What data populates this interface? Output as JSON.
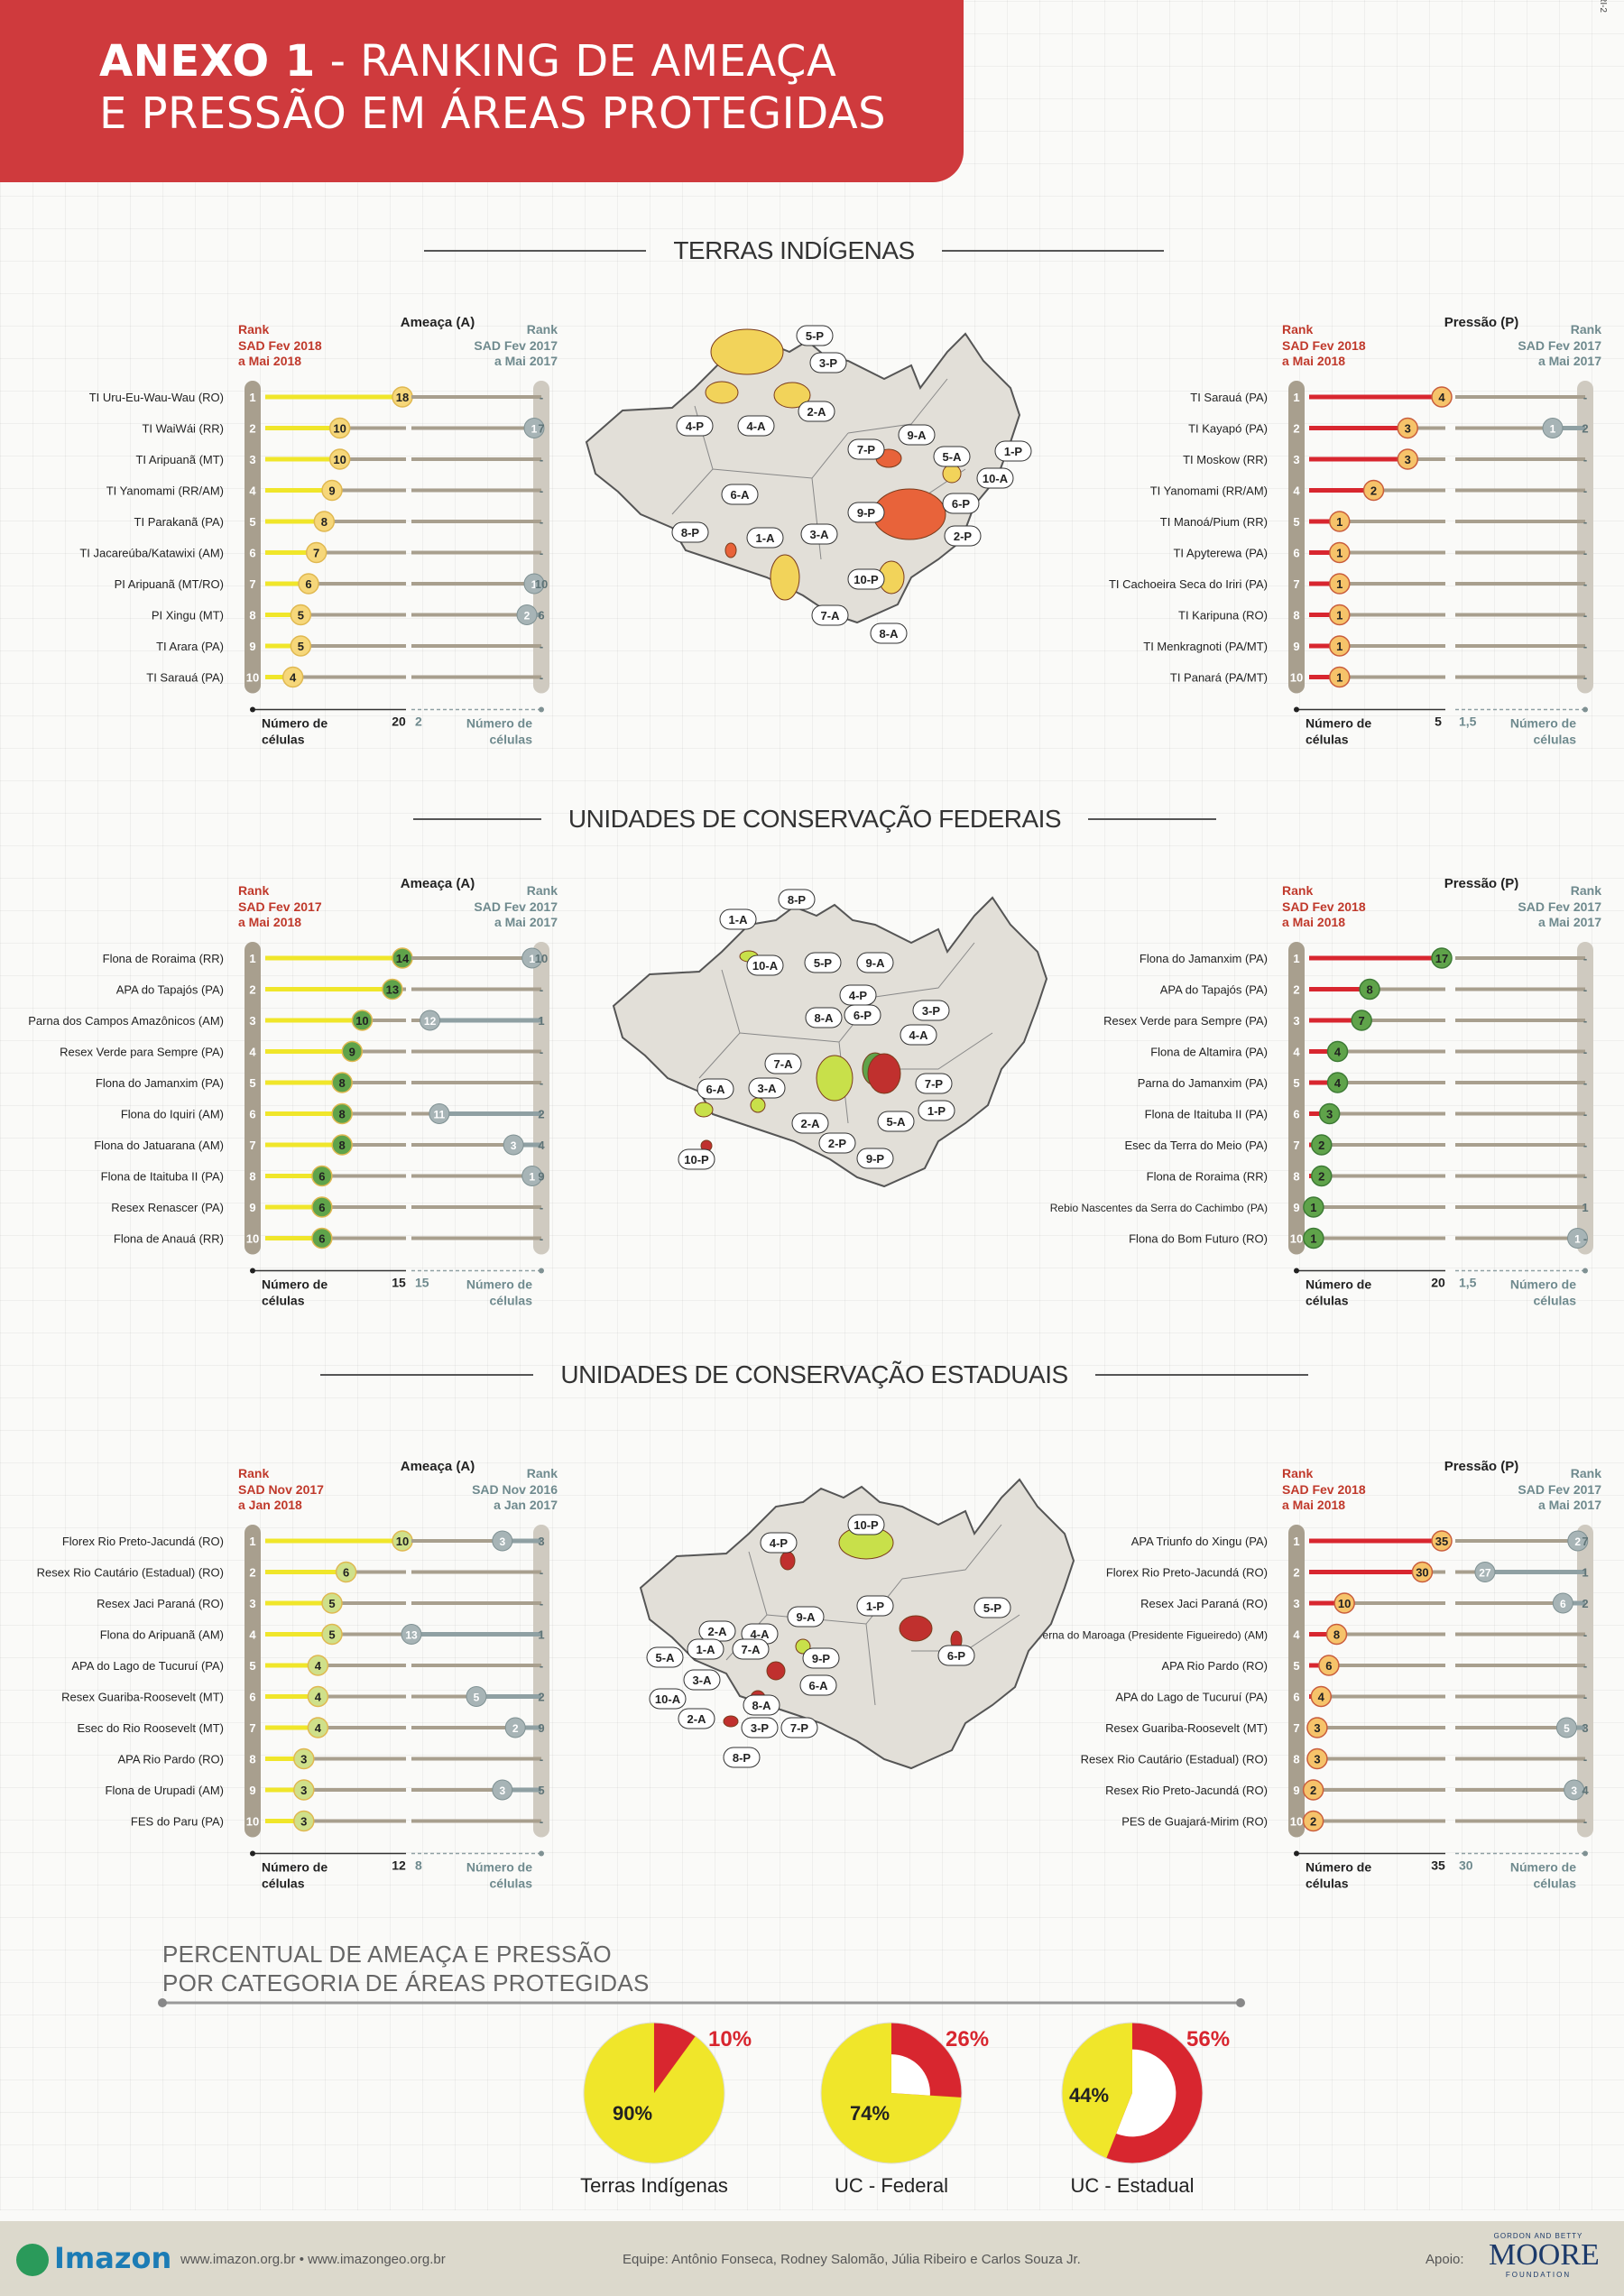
{
  "header": {
    "title_line1_bold": "ANEXO 1",
    "title_line1_rest": " - RANKING DE AMEAÇA",
    "title_line2": "E PRESSÃO EM ÁREAS PROTEGIDAS",
    "corner_code": "RI-2"
  },
  "colors": {
    "threat": "#f0e62a",
    "threat_badge": "#f6d77a",
    "threat_badge_green": "#5fa34a",
    "threat_badge_light": "#cfe08a",
    "pressure": "#d8262f",
    "pressure_badge": "#f6c36a",
    "rail": "#a89f8e",
    "rail_light": "#cfcac0",
    "prev": "#8fa0a3",
    "map_fill": "#e2dfd8"
  },
  "chart_data": [
    {
      "type": "bar",
      "id": "ti",
      "section_title": "TERRAS INDÍGENAS",
      "left": {
        "header": "Ameaça (A)",
        "rank_now": [
          "Rank",
          "SAD Fev 2018",
          "a Mai 2018"
        ],
        "rank_prev": [
          "Rank",
          "SAD Fev 2017",
          "a Mai 2017"
        ],
        "axis_max": "20",
        "axis_prev": "2",
        "axis_label": [
          "Número de",
          "células"
        ],
        "axis_label_prev": [
          "Número de",
          "células"
        ],
        "badge_style": "yellow",
        "rows": [
          {
            "name": "TI Uru-Eu-Wau-Wau (RO)",
            "value": 18,
            "prev_value": null,
            "prev_rank": "-"
          },
          {
            "name": "TI WaiWái (RR)",
            "value": 10,
            "prev_value": 1,
            "prev_rank": "7"
          },
          {
            "name": "TI Aripuanã (MT)",
            "value": 10,
            "prev_value": null,
            "prev_rank": "-"
          },
          {
            "name": "TI Yanomami (RR/AM)",
            "value": 9,
            "prev_value": null,
            "prev_rank": "-"
          },
          {
            "name": "TI Parakanã (PA)",
            "value": 8,
            "prev_value": null,
            "prev_rank": "-"
          },
          {
            "name": "TI Jacareúba/Katawixi (AM)",
            "value": 7,
            "prev_value": null,
            "prev_rank": "-"
          },
          {
            "name": "PI Aripuanã (MT/RO)",
            "value": 6,
            "prev_value": 1,
            "prev_rank": "10"
          },
          {
            "name": "PI Xingu (MT)",
            "value": 5,
            "prev_value": 2,
            "prev_rank": "6"
          },
          {
            "name": "TI Arara (PA)",
            "value": 5,
            "prev_value": null,
            "prev_rank": "-"
          },
          {
            "name": "TI Sarauá (PA)",
            "value": 4,
            "prev_value": null,
            "prev_rank": "-"
          }
        ]
      },
      "right": {
        "header": "Pressão (P)",
        "rank_now": [
          "Rank",
          "SAD Fev 2018",
          "a Mai 2018"
        ],
        "rank_prev": [
          "Rank",
          "SAD Fev 2017",
          "a Mai 2017"
        ],
        "axis_max": "5",
        "axis_prev": "1,5",
        "axis_label": [
          "Número de",
          "células"
        ],
        "axis_label_prev": [
          "Número de",
          "células"
        ],
        "rows": [
          {
            "name": "TI Sarauá (PA)",
            "value": 4,
            "prev_value": null,
            "prev_rank": "-"
          },
          {
            "name": "TI Kayapó (PA)",
            "value": 3,
            "prev_value": 1,
            "prev_rank": "2"
          },
          {
            "name": "TI Moskow (RR)",
            "value": 3,
            "prev_value": null,
            "prev_rank": "-"
          },
          {
            "name": "TI Yanomami (RR/AM)",
            "value": 2,
            "prev_value": null,
            "prev_rank": "-"
          },
          {
            "name": "TI Manoá/Pium (RR)",
            "value": 1,
            "prev_value": null,
            "prev_rank": "-"
          },
          {
            "name": "TI Apyterewa (PA)",
            "value": 1,
            "prev_value": null,
            "prev_rank": "-"
          },
          {
            "name": "TI Cachoeira Seca do Iriri (PA)",
            "value": 1,
            "prev_value": null,
            "prev_rank": "-"
          },
          {
            "name": "TI Karipuna (RO)",
            "value": 1,
            "prev_value": null,
            "prev_rank": "-"
          },
          {
            "name": "TI Menkragnoti (PA/MT)",
            "value": 1,
            "prev_value": null,
            "prev_rank": "-"
          },
          {
            "name": "TI Panará (PA/MT)",
            "value": 1,
            "prev_value": null,
            "prev_rank": "-"
          }
        ]
      },
      "map_labels": [
        "1-A",
        "2-A",
        "3-A",
        "4-A",
        "5-A",
        "6-A",
        "7-A",
        "8-A",
        "9-A",
        "10-A",
        "1-P",
        "2-P",
        "3-P",
        "4-P",
        "5-P",
        "6-P",
        "7-P",
        "8-P",
        "9-P",
        "10-P"
      ]
    },
    {
      "type": "bar",
      "id": "ucf",
      "section_title": "UNIDADES DE CONSERVAÇÃO FEDERAIS",
      "left": {
        "header": "Ameaça (A)",
        "rank_now": [
          "Rank",
          "SAD Fev 2017",
          "a Mai 2018"
        ],
        "rank_prev": [
          "Rank",
          "SAD Fev 2017",
          "a Mai 2017"
        ],
        "axis_max": "15",
        "axis_prev": "15",
        "axis_label": [
          "Número de",
          "células"
        ],
        "axis_label_prev": [
          "Número de",
          "células"
        ],
        "badge_style": "green",
        "rows": [
          {
            "name": "Flona de Roraima (RR)",
            "value": 14,
            "prev_value": 1,
            "prev_rank": "10"
          },
          {
            "name": "APA do Tapajós (PA)",
            "value": 13,
            "prev_value": null,
            "prev_rank": "-"
          },
          {
            "name": "Parna dos Campos Amazônicos (AM)",
            "value": 10,
            "prev_value": 12,
            "prev_rank": "1"
          },
          {
            "name": "Resex Verde para Sempre (PA)",
            "value": 9,
            "prev_value": null,
            "prev_rank": "-"
          },
          {
            "name": "Flona do Jamanxim (PA)",
            "value": 8,
            "prev_value": null,
            "prev_rank": "-"
          },
          {
            "name": "Flona do Iquiri (AM)",
            "value": 8,
            "prev_value": 11,
            "prev_rank": "2"
          },
          {
            "name": "Flona do Jatuarana (AM)",
            "value": 8,
            "prev_value": 3,
            "prev_rank": "4"
          },
          {
            "name": "Flona de Itaituba II (PA)",
            "value": 6,
            "prev_value": 1,
            "prev_rank": "9"
          },
          {
            "name": "Resex Renascer (PA)",
            "value": 6,
            "prev_value": null,
            "prev_rank": "-"
          },
          {
            "name": "Flona de Anauá (RR)",
            "value": 6,
            "prev_value": null,
            "prev_rank": "-"
          }
        ]
      },
      "right": {
        "header": "Pressão (P)",
        "rank_now": [
          "Rank",
          "SAD Fev 2018",
          "a Mai 2018"
        ],
        "rank_prev": [
          "Rank",
          "SAD Fev 2017",
          "a Mai 2017"
        ],
        "axis_max": "20",
        "axis_prev": "1,5",
        "axis_label": [
          "Número de",
          "células"
        ],
        "axis_label_prev": [
          "Número de",
          "células"
        ],
        "rows": [
          {
            "name": "Flona do Jamanxim (PA)",
            "value": 17,
            "prev_value": null,
            "prev_rank": "-"
          },
          {
            "name": "APA do Tapajós (PA)",
            "value": 8,
            "prev_value": null,
            "prev_rank": "-"
          },
          {
            "name": "Resex Verde para Sempre (PA)",
            "value": 7,
            "prev_value": null,
            "prev_rank": "-"
          },
          {
            "name": "Flona de Altamira (PA)",
            "value": 4,
            "prev_value": null,
            "prev_rank": "-"
          },
          {
            "name": "Parna do Jamanxim (PA)",
            "value": 4,
            "prev_value": null,
            "prev_rank": "-"
          },
          {
            "name": "Flona de Itaituba II (PA)",
            "value": 3,
            "prev_value": null,
            "prev_rank": "-"
          },
          {
            "name": "Esec da Terra do Meio (PA)",
            "value": 2,
            "prev_value": null,
            "prev_rank": "-"
          },
          {
            "name": "Flona de Roraima (RR)",
            "value": 2,
            "prev_value": null,
            "prev_rank": "-"
          },
          {
            "name": "Rebio Nascentes da Serra do Cachimbo (PA)",
            "value": 1,
            "prev_value": null,
            "prev_rank": "1"
          },
          {
            "name": "Flona do Bom Futuro (RO)",
            "value": 1,
            "prev_value": 1,
            "prev_rank": "-"
          }
        ]
      },
      "map_labels": [
        "1-A",
        "2-A",
        "3-A",
        "4-A",
        "5-A",
        "6-A",
        "7-A",
        "8-A",
        "9-A",
        "10-A",
        "1-P",
        "2-P",
        "3-P",
        "4-P",
        "5-P",
        "6-P",
        "7-P",
        "8-P",
        "9-P",
        "10-P"
      ]
    },
    {
      "type": "bar",
      "id": "uce",
      "section_title": "UNIDADES DE CONSERVAÇÃO ESTADUAIS",
      "left": {
        "header": "Ameaça (A)",
        "rank_now": [
          "Rank",
          "SAD Nov 2017",
          "a Jan 2018"
        ],
        "rank_prev": [
          "Rank",
          "SAD Nov 2016",
          "a Jan 2017"
        ],
        "axis_max": "12",
        "axis_prev": "8",
        "axis_label": [
          "Número de",
          "células"
        ],
        "axis_label_prev": [
          "Número de",
          "células"
        ],
        "badge_style": "lightgreen",
        "rows": [
          {
            "name": "Florex Rio Preto-Jacundá (RO)",
            "value": 10,
            "prev_value": 3,
            "prev_rank": "3"
          },
          {
            "name": "Resex Rio Cautário (Estadual) (RO)",
            "value": 6,
            "prev_value": null,
            "prev_rank": "-"
          },
          {
            "name": "Resex Jaci Paraná (RO)",
            "value": 5,
            "prev_value": null,
            "prev_rank": "-"
          },
          {
            "name": "Flona do Aripuanã (AM)",
            "value": 5,
            "prev_value": 13,
            "prev_rank": "1"
          },
          {
            "name": "APA do Lago de Tucuruí (PA)",
            "value": 4,
            "prev_value": null,
            "prev_rank": "-"
          },
          {
            "name": "Resex Guariba-Roosevelt (MT)",
            "value": 4,
            "prev_value": 5,
            "prev_rank": "2"
          },
          {
            "name": "Esec do Rio Roosevelt (MT)",
            "value": 4,
            "prev_value": 2,
            "prev_rank": "9"
          },
          {
            "name": "APA Rio Pardo (RO)",
            "value": 3,
            "prev_value": null,
            "prev_rank": "-"
          },
          {
            "name": "Flona de Urupadi (AM)",
            "value": 3,
            "prev_value": 3,
            "prev_rank": "5"
          },
          {
            "name": "FES do Paru (PA)",
            "value": 3,
            "prev_value": null,
            "prev_rank": "-"
          }
        ]
      },
      "right": {
        "header": "Pressão (P)",
        "rank_now": [
          "Rank",
          "SAD Fev 2018",
          "a Mai 2018"
        ],
        "rank_prev": [
          "Rank",
          "SAD Fev 2017",
          "a Mai 2017"
        ],
        "axis_max": "35",
        "axis_prev": "30",
        "axis_label": [
          "Número de",
          "células"
        ],
        "axis_label_prev": [
          "Número de",
          "células"
        ],
        "rows": [
          {
            "name": "APA Triunfo do Xingu (PA)",
            "value": 35,
            "prev_value": 2,
            "prev_rank": "7"
          },
          {
            "name": "Florex Rio Preto-Jacundá (RO)",
            "value": 30,
            "prev_value": 27,
            "prev_rank": "1"
          },
          {
            "name": "Resex Jaci Paraná (RO)",
            "value": 10,
            "prev_value": 6,
            "prev_rank": "2"
          },
          {
            "name": "APA Caverna do Maroaga (Presidente Figueiredo) (AM)",
            "value": 8,
            "prev_value": null,
            "prev_rank": "-"
          },
          {
            "name": "APA Rio Pardo (RO)",
            "value": 6,
            "prev_value": null,
            "prev_rank": "-"
          },
          {
            "name": "APA do Lago de Tucuruí (PA)",
            "value": 4,
            "prev_value": null,
            "prev_rank": "-"
          },
          {
            "name": "Resex Guariba-Roosevelt (MT)",
            "value": 3,
            "prev_value": 5,
            "prev_rank": "3"
          },
          {
            "name": "Resex Rio Cautário (Estadual) (RO)",
            "value": 3,
            "prev_value": null,
            "prev_rank": "-"
          },
          {
            "name": "Resex Rio Preto-Jacundá (RO)",
            "value": 2,
            "prev_value": 3,
            "prev_rank": "4"
          },
          {
            "name": "PES de Guajará-Mirim (RO)",
            "value": 2,
            "prev_value": null,
            "prev_rank": "-"
          }
        ]
      },
      "map_labels": [
        "1-A",
        "2-A",
        "3-A",
        "4-A",
        "5-A",
        "6-A",
        "7-A",
        "8-A",
        "9-A",
        "10-A",
        "1-P",
        "2-P",
        "3-P",
        "4-P",
        "5-P",
        "6-P",
        "7-P",
        "8-P",
        "9-P",
        "10-P"
      ]
    },
    {
      "type": "pie",
      "id": "pct",
      "title_line1": "PERCENTUAL DE AMEAÇA E PRESSÃO",
      "title_line2": "POR CATEGORIA DE ÁREAS PROTEGIDAS",
      "pies": [
        {
          "label": "Terras Indígenas",
          "threat_pct": 90,
          "pressure_pct": 10,
          "threat_label": "90%",
          "pressure_label": "10%",
          "style": "solid"
        },
        {
          "label": "UC - Federal",
          "threat_pct": 74,
          "pressure_pct": 26,
          "threat_label": "74%",
          "pressure_label": "26%",
          "style": "ring-partial"
        },
        {
          "label": "UC - Estadual",
          "threat_pct": 44,
          "pressure_pct": 56,
          "threat_label": "44%",
          "pressure_label": "56%",
          "style": "ring"
        }
      ]
    }
  ],
  "footer": {
    "logo": "Imazon",
    "links": "www.imazon.org.br • www.imazongeo.org.br",
    "team": "Equipe: Antônio Fonseca, Rodney Salomão, Júlia Ribeiro e Carlos Souza Jr.",
    "apoio": "Apoio:",
    "sponsor_small": "GORDON AND BETTY",
    "sponsor_big": "MOORE",
    "sponsor_foundation": "FOUNDATION"
  }
}
